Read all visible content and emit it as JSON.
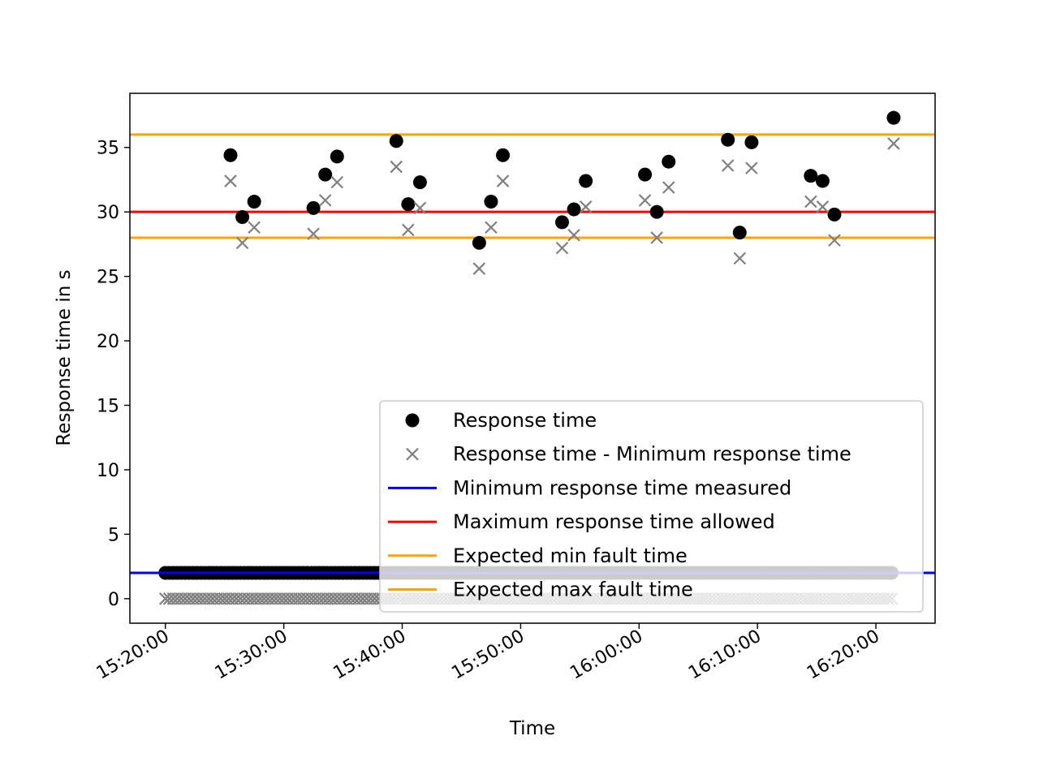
{
  "chart_data": {
    "type": "scatter",
    "title": "",
    "xlabel": "Time",
    "ylabel": "Response time in s",
    "x_ticks": [
      "15:20:00",
      "15:30:00",
      "15:40:00",
      "15:50:00",
      "16:00:00",
      "16:10:00",
      "16:20:00"
    ],
    "y_ticks": [
      "0",
      "5",
      "10",
      "15",
      "20",
      "25",
      "30",
      "35"
    ],
    "xlim": [
      "15:17:00",
      "16:25:00"
    ],
    "ylim": [
      -1.9,
      39.2
    ],
    "grid": false,
    "legend_position": "lower right",
    "baseline": {
      "start": "15:20:00",
      "end": "16:21:30",
      "step_seconds": 20,
      "response_time": 2.0,
      "difference": 0.0
    },
    "series": [
      {
        "name": "Response time",
        "marker": "circle",
        "color": "#000000",
        "points": [
          [
            "15:25:30",
            34.4
          ],
          [
            "15:26:30",
            29.6
          ],
          [
            "15:27:30",
            30.8
          ],
          [
            "15:32:30",
            30.3
          ],
          [
            "15:33:30",
            32.9
          ],
          [
            "15:34:30",
            34.3
          ],
          [
            "15:39:30",
            35.5
          ],
          [
            "15:40:30",
            30.6
          ],
          [
            "15:41:30",
            32.3
          ],
          [
            "15:46:30",
            27.6
          ],
          [
            "15:47:30",
            30.8
          ],
          [
            "15:48:30",
            34.4
          ],
          [
            "15:53:30",
            29.2
          ],
          [
            "15:54:30",
            30.2
          ],
          [
            "15:55:30",
            32.4
          ],
          [
            "16:00:30",
            32.9
          ],
          [
            "16:01:30",
            30.0
          ],
          [
            "16:02:30",
            33.9
          ],
          [
            "16:07:30",
            35.6
          ],
          [
            "16:08:30",
            28.4
          ],
          [
            "16:09:30",
            35.4
          ],
          [
            "16:14:30",
            32.8
          ],
          [
            "16:15:30",
            32.4
          ],
          [
            "16:16:30",
            29.8
          ],
          [
            "16:21:30",
            37.3
          ]
        ]
      },
      {
        "name": "Response time - Minimum response time",
        "marker": "x",
        "color": "#808080",
        "points": [
          [
            "15:25:30",
            32.4
          ],
          [
            "15:26:30",
            27.6
          ],
          [
            "15:27:30",
            28.8
          ],
          [
            "15:32:30",
            28.3
          ],
          [
            "15:33:30",
            30.9
          ],
          [
            "15:34:30",
            32.3
          ],
          [
            "15:39:30",
            33.5
          ],
          [
            "15:40:30",
            28.6
          ],
          [
            "15:41:30",
            30.3
          ],
          [
            "15:46:30",
            25.6
          ],
          [
            "15:47:30",
            28.8
          ],
          [
            "15:48:30",
            32.4
          ],
          [
            "15:53:30",
            27.2
          ],
          [
            "15:54:30",
            28.2
          ],
          [
            "15:55:30",
            30.4
          ],
          [
            "16:00:30",
            30.9
          ],
          [
            "16:01:30",
            28.0
          ],
          [
            "16:02:30",
            31.9
          ],
          [
            "16:07:30",
            33.6
          ],
          [
            "16:08:30",
            26.4
          ],
          [
            "16:09:30",
            33.4
          ],
          [
            "16:14:30",
            30.8
          ],
          [
            "16:15:30",
            30.4
          ],
          [
            "16:16:30",
            27.8
          ],
          [
            "16:21:30",
            35.3
          ]
        ]
      }
    ],
    "hlines": [
      {
        "name": "Minimum response time measured",
        "y": 2.0,
        "color": "#0000ff"
      },
      {
        "name": "Maximum response time allowed",
        "y": 30.0,
        "color": "#ff0000"
      },
      {
        "name": "Expected min fault time",
        "y": 28.0,
        "color": "#ffa500"
      },
      {
        "name": "Expected max fault time",
        "y": 36.0,
        "color": "#ffa500"
      }
    ]
  }
}
